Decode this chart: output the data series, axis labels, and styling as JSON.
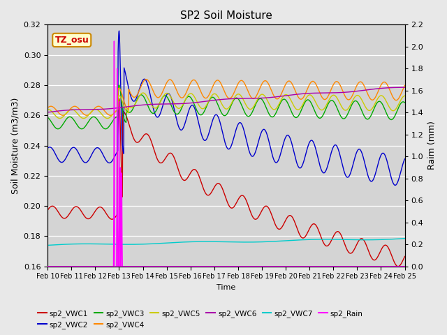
{
  "title": "SP2 Soil Moisture",
  "ylabel_left": "Soil Moisture (m3/m3)",
  "ylabel_right": "Raim (mm)",
  "xlabel": "Time",
  "ylim_left": [
    0.16,
    0.32
  ],
  "ylim_right": [
    0.0,
    2.2
  ],
  "x_tick_labels": [
    "Feb 10",
    "Feb 11",
    "Feb 12",
    "Feb 13",
    "Feb 14",
    "Feb 15",
    "Feb 16",
    "Feb 17",
    "Feb 18",
    "Feb 19",
    "Feb 20",
    "Feb 21",
    "Feb 22",
    "Feb 23",
    "Feb 24",
    "Feb 25"
  ],
  "bg_color": "#e8e8e8",
  "plot_bg_color": "#d8d8d8",
  "tz_label": "TZ_osu",
  "tz_fg": "#cc0000",
  "tz_bg": "#ffffcc",
  "tz_border": "#cc8800",
  "legend_entries": [
    "sp2_VWC1",
    "sp2_VWC2",
    "sp2_VWC3",
    "sp2_VWC4",
    "sp2_VWC5",
    "sp2_VWC6",
    "sp2_VWC7",
    "sp2_Rain"
  ],
  "line_colors": [
    "#cc0000",
    "#0000cc",
    "#00aa00",
    "#ff8800",
    "#cccc00",
    "#aa00aa",
    "#00cccc",
    "#ff00ff"
  ],
  "rain_day": 3.0,
  "n_points": 1080,
  "n_days": 15
}
